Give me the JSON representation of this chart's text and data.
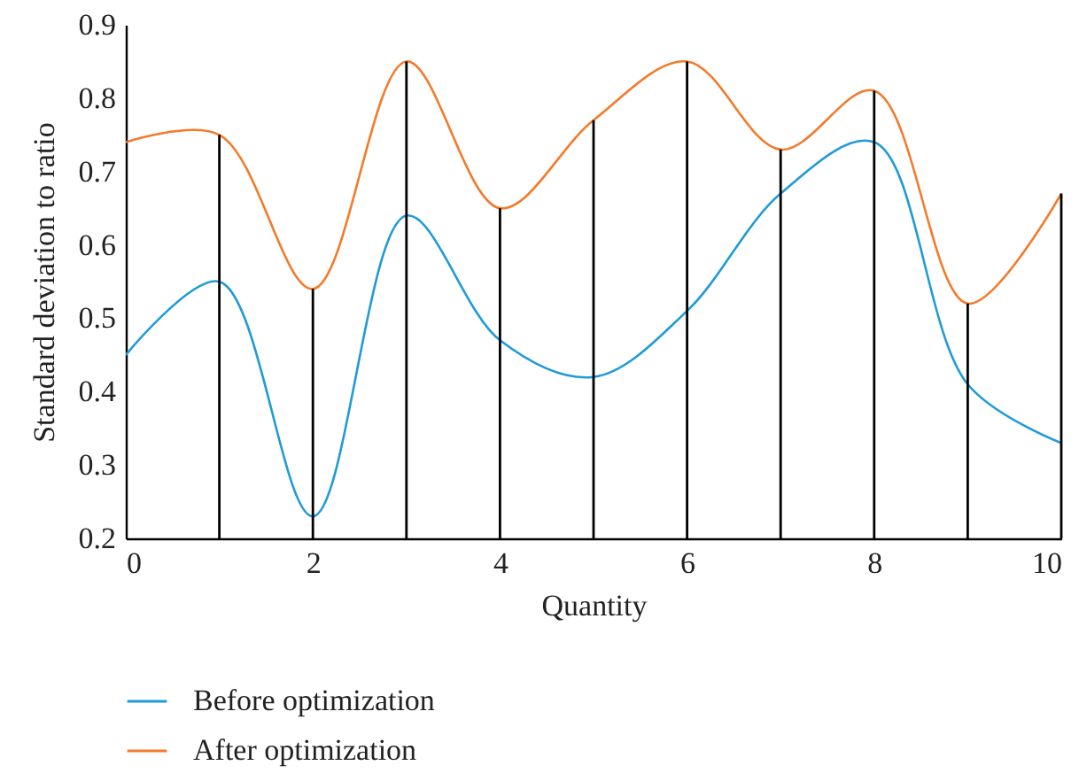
{
  "chart_data": {
    "type": "line",
    "xlabel": "Quantity",
    "ylabel": "Standard deviation to ratio",
    "x": [
      0,
      1,
      2,
      3,
      4,
      5,
      6,
      7,
      8,
      9,
      10
    ],
    "series": [
      {
        "name": "Before optimization",
        "color": "#1f9bd7",
        "values": [
          0.45,
          0.55,
          0.23,
          0.64,
          0.47,
          0.42,
          0.51,
          0.67,
          0.74,
          0.41,
          0.33
        ]
      },
      {
        "name": "After optimization",
        "color": "#f47a2a",
        "values": [
          0.74,
          0.75,
          0.54,
          0.85,
          0.65,
          0.77,
          0.85,
          0.73,
          0.81,
          0.52,
          0.67
        ]
      },
      {
        "type": "bar",
        "color": "#000000",
        "x": [
          1,
          2,
          3,
          4,
          5,
          6,
          7,
          8,
          9,
          10
        ],
        "values": [
          0.75,
          0.54,
          0.85,
          0.65,
          0.77,
          0.85,
          0.73,
          0.81,
          0.52,
          0.67
        ]
      }
    ],
    "xlim": [
      0,
      10
    ],
    "xticks": [
      0,
      2,
      4,
      6,
      8,
      10
    ],
    "ylim": [
      0.2,
      0.9
    ],
    "yticks": [
      0.2,
      0.3,
      0.4,
      0.5,
      0.6,
      0.7,
      0.8,
      0.9
    ],
    "grid": false,
    "legend": "bottom",
    "marker": "none",
    "line_style": "solid"
  }
}
